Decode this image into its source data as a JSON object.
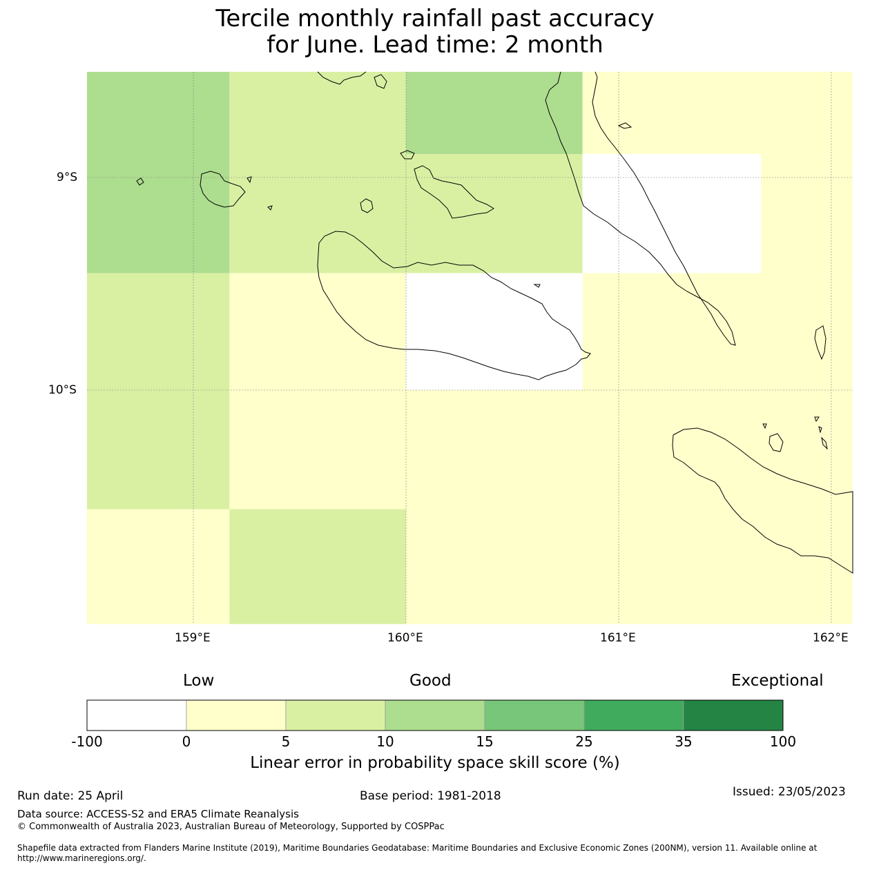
{
  "title": {
    "line1": "Tercile monthly rainfall past accuracy",
    "line2": "for June. Lead time: 2 month"
  },
  "map": {
    "lat_labels": [
      "9°S",
      "10°S"
    ],
    "lon_labels": [
      "159°E",
      "160°E",
      "161°E",
      "162°E"
    ],
    "grid_cells": [
      {
        "lon": [
          158.5,
          159.17
        ],
        "lat": [
          -8.5,
          -9.45
        ],
        "category": "10-15"
      },
      {
        "lon": [
          159.17,
          160.0
        ],
        "lat": [
          -8.5,
          -9.45
        ],
        "category": "5-10"
      },
      {
        "lon": [
          160.0,
          160.83
        ],
        "lat": [
          -8.5,
          -8.89
        ],
        "category": "10-15"
      },
      {
        "lon": [
          160.0,
          160.83
        ],
        "lat": [
          -8.89,
          -9.45
        ],
        "category": "5-10"
      },
      {
        "lon": [
          160.83,
          162.1
        ],
        "lat": [
          -8.5,
          -8.89
        ],
        "category": "0-5"
      },
      {
        "lon": [
          160.83,
          161.67
        ],
        "lat": [
          -8.89,
          -9.45
        ],
        "category": "-100-0"
      },
      {
        "lon": [
          161.67,
          162.1
        ],
        "lat": [
          -8.89,
          -9.45
        ],
        "category": "0-5"
      },
      {
        "lon": [
          158.5,
          159.17
        ],
        "lat": [
          -9.45,
          -10.56
        ],
        "category": "5-10"
      },
      {
        "lon": [
          159.17,
          160.0
        ],
        "lat": [
          -9.45,
          -10.0
        ],
        "category": "0-5"
      },
      {
        "lon": [
          160.0,
          160.83
        ],
        "lat": [
          -9.45,
          -10.0
        ],
        "category": "-100-0"
      },
      {
        "lon": [
          160.83,
          162.1
        ],
        "lat": [
          -9.45,
          -10.0
        ],
        "category": "0-5"
      },
      {
        "lon": [
          159.17,
          160.0
        ],
        "lat": [
          -10.0,
          -10.56
        ],
        "category": "0-5"
      },
      {
        "lon": [
          160.0,
          162.1
        ],
        "lat": [
          -10.0,
          -11.1
        ],
        "category": "0-5"
      },
      {
        "lon": [
          158.5,
          159.17
        ],
        "lat": [
          -10.56,
          -11.1
        ],
        "category": "0-5"
      },
      {
        "lon": [
          159.17,
          160.0
        ],
        "lat": [
          -10.56,
          -11.1
        ],
        "category": "5-10"
      }
    ]
  },
  "colorbar": {
    "headings": {
      "low": "Low",
      "good": "Good",
      "exceptional": "Exceptional"
    },
    "ticks": [
      "-100",
      "0",
      "5",
      "10",
      "15",
      "25",
      "35",
      "100"
    ],
    "bins": [
      {
        "range": "-100-0",
        "color": "#ffffff"
      },
      {
        "range": "0-5",
        "color": "#ffffcc"
      },
      {
        "range": "5-10",
        "color": "#d9f0a3"
      },
      {
        "range": "10-15",
        "color": "#addd8e"
      },
      {
        "range": "15-25",
        "color": "#78c679"
      },
      {
        "range": "25-35",
        "color": "#41ab5d"
      },
      {
        "range": "35-100",
        "color": "#238443"
      }
    ],
    "label": "Linear error in probability space skill score (%)"
  },
  "footer": {
    "run_date": "Run date: 25 April",
    "base_period": "Base period: 1981-2018",
    "issued": "Issued: 23/05/2023",
    "data_source": "Data source: ACCESS-S2 and ERA5 Climate Reanalysis",
    "copyright": "© Commonwealth of Australia 2023, Australian Bureau of Meteorology, Supported by COSPPac",
    "shapefile": "Shapefile data extracted from Flanders Marine Institute (2019), Maritime Boundaries Geodatabase: Maritime Boundaries and Exclusive Economic Zones (200NM), version 11. Available online at http://www.marineregions.org/."
  }
}
